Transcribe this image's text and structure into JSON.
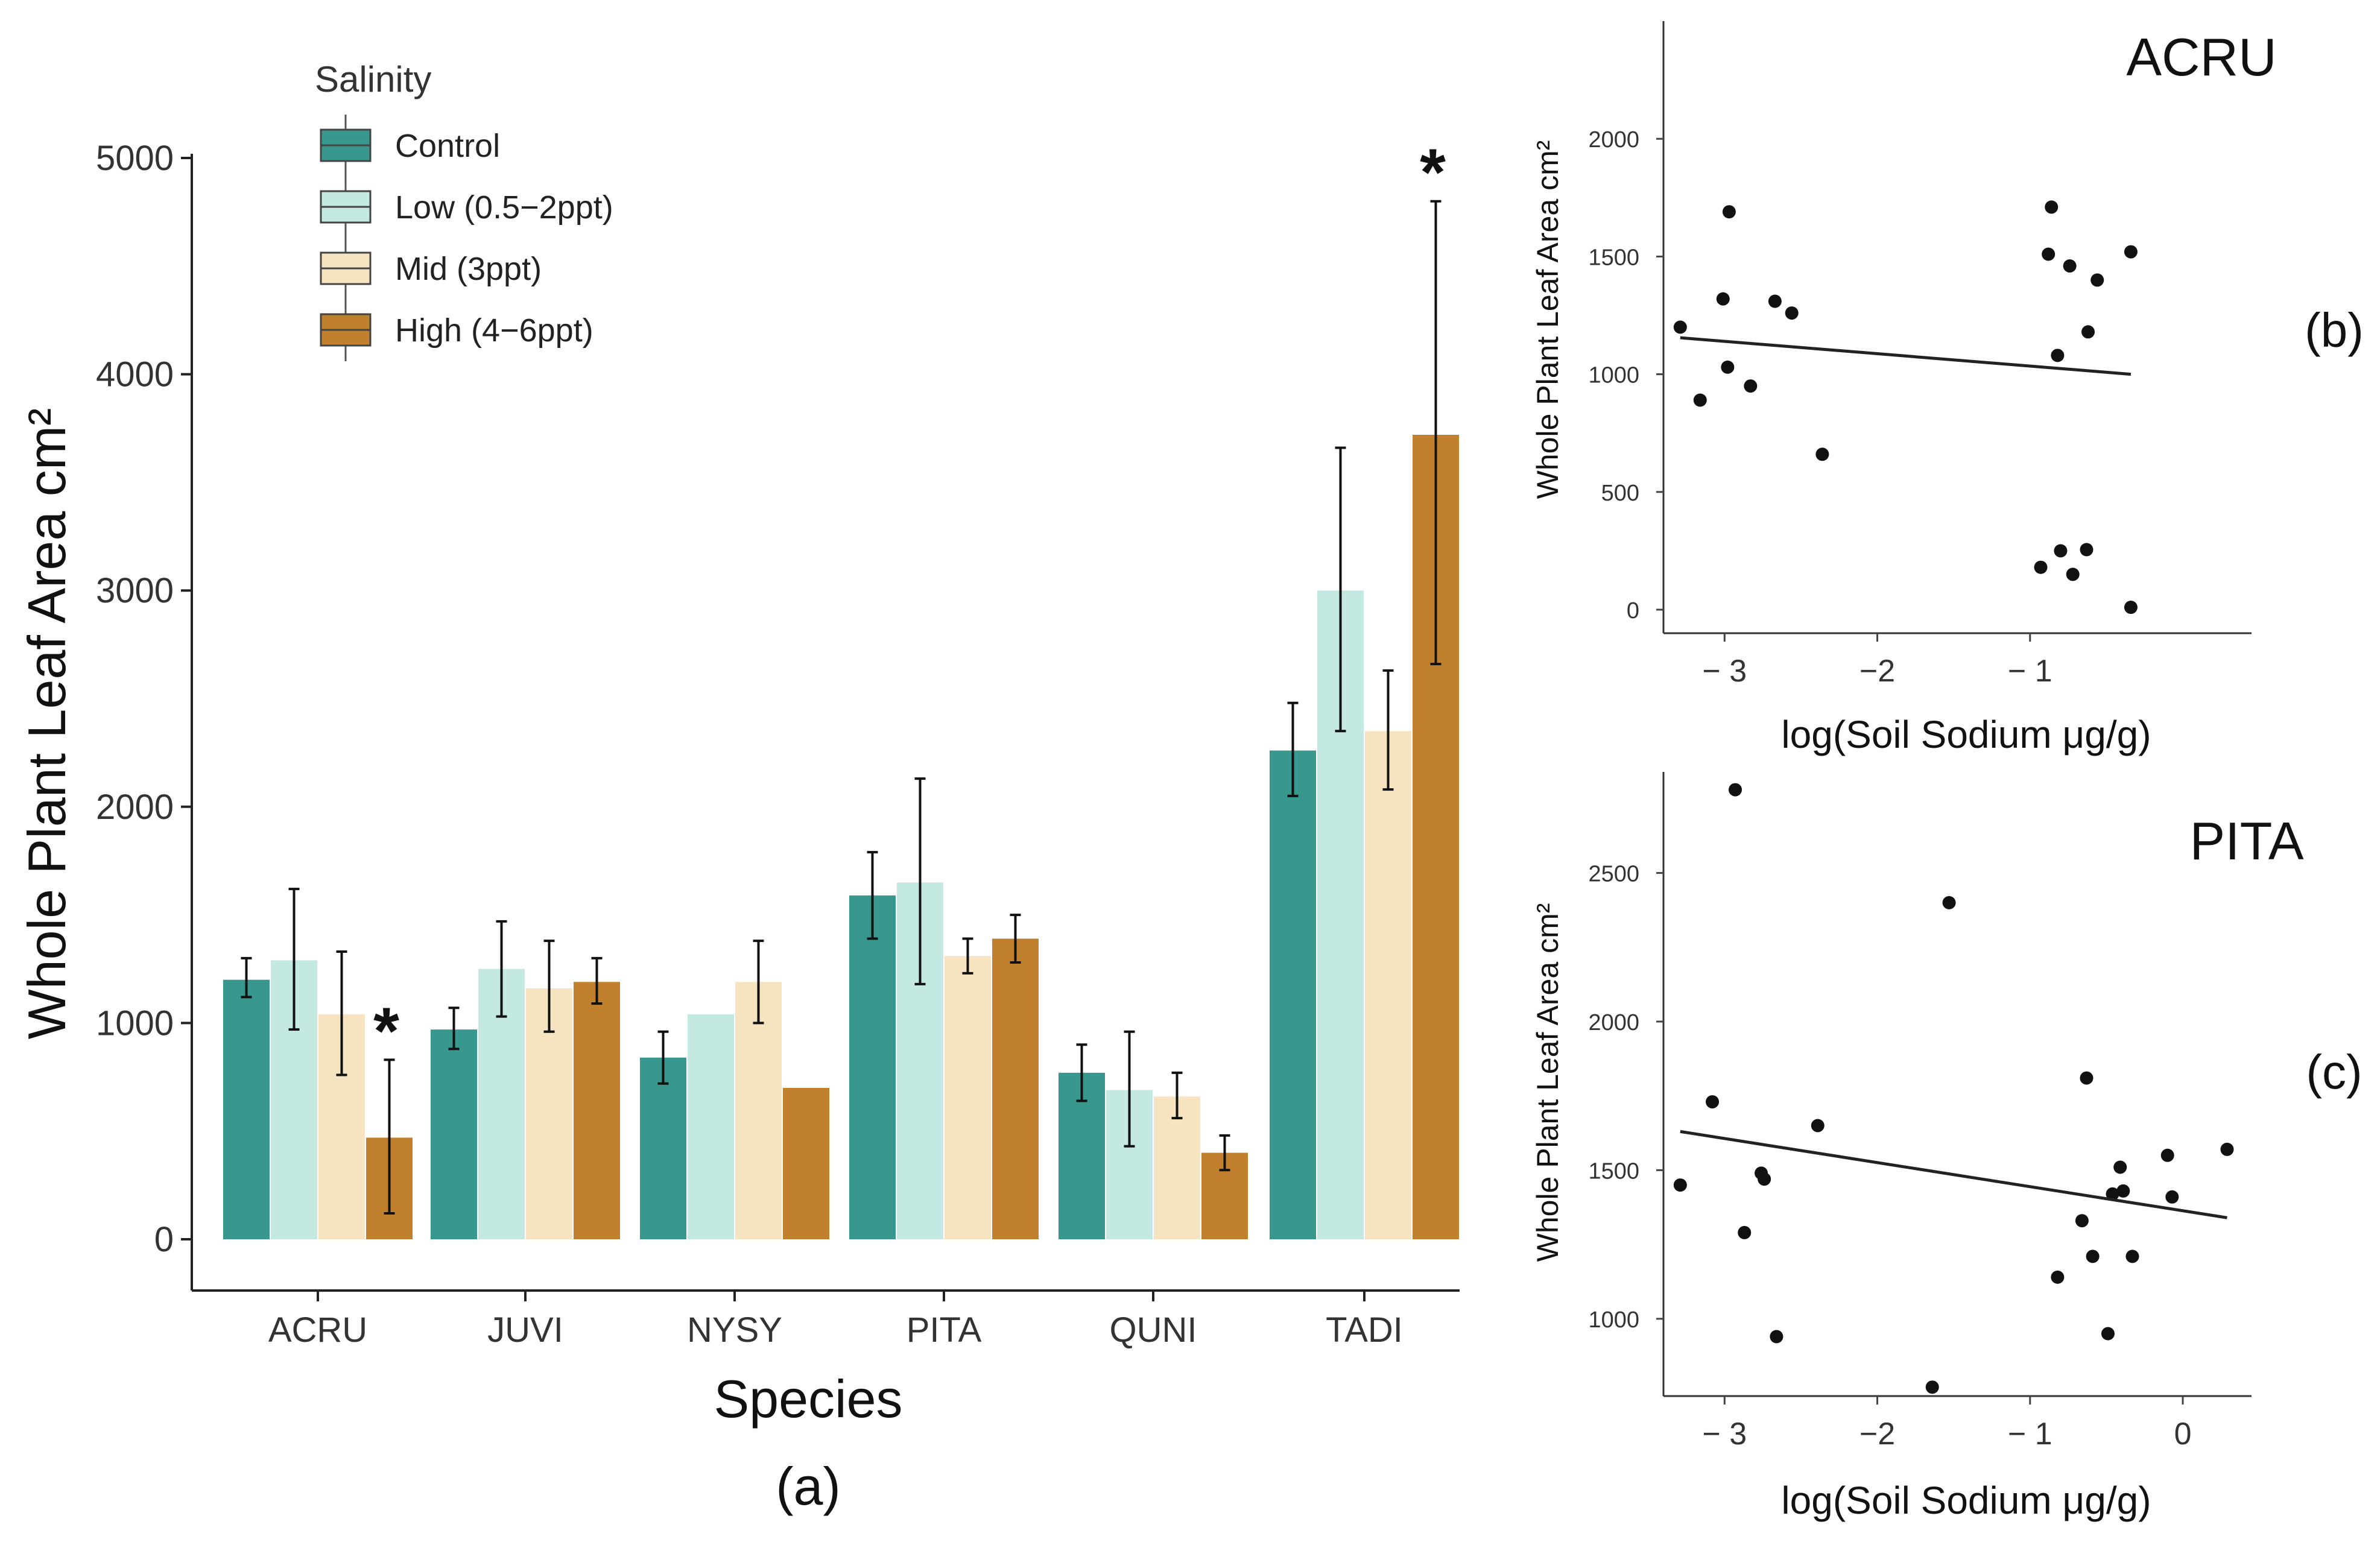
{
  "chart_data": [
    {
      "panel": "a",
      "type": "bar",
      "title": "",
      "panel_label": "(a)",
      "xlabel": "Species",
      "ylabel": "Whole Plant Leaf Area cm²",
      "ylim": [
        0,
        5200
      ],
      "yticks": [
        0,
        1000,
        2000,
        3000,
        4000,
        5000
      ],
      "categories": [
        "ACRU",
        "JUVI",
        "NYSY",
        "PITA",
        "QUNI",
        "TADI"
      ],
      "legend": {
        "title": "Salinity",
        "position": "top-left"
      },
      "series": [
        {
          "name": "Control",
          "color": "#38988e",
          "values": [
            1200,
            970,
            840,
            1590,
            770,
            2260
          ],
          "error_low": [
            1120,
            880,
            720,
            1390,
            640,
            2050
          ],
          "error_high": [
            1300,
            1070,
            960,
            1790,
            900,
            2480
          ]
        },
        {
          "name": "Low (0.5−2ppt)",
          "color": "#c3e9e2",
          "values": [
            1290,
            1250,
            1040,
            1650,
            690,
            3000
          ],
          "error_low": [
            970,
            1030,
            null,
            1180,
            430,
            2350
          ],
          "error_high": [
            1620,
            1470,
            null,
            2130,
            960,
            3660
          ]
        },
        {
          "name": "Mid (3ppt)",
          "color": "#f5e4bf",
          "values": [
            1040,
            1160,
            1190,
            1310,
            660,
            2350
          ],
          "error_low": [
            760,
            960,
            1000,
            1230,
            560,
            2080
          ],
          "error_high": [
            1330,
            1380,
            1380,
            1390,
            770,
            2630
          ]
        },
        {
          "name": "High (4−6ppt)",
          "color": "#c1802e",
          "values": [
            470,
            1190,
            700,
            1390,
            400,
            3720
          ],
          "error_low": [
            120,
            1090,
            null,
            1280,
            320,
            2660
          ],
          "error_high": [
            830,
            1300,
            null,
            1500,
            480,
            4800
          ]
        }
      ],
      "annotations": [
        {
          "text": "*",
          "category": "ACRU",
          "series": "High (4−6ppt)"
        },
        {
          "text": "*",
          "category": "TADI",
          "series": "High (4−6ppt)"
        }
      ]
    },
    {
      "panel": "b",
      "type": "scatter",
      "title": "ACRU",
      "panel_label": "(b)",
      "xlabel": "log(Soil Sodium μg/g)",
      "ylabel": "Whole Plant Leaf Area cm²",
      "xlim": [
        -3.4,
        0.45
      ],
      "ylim": [
        -100,
        2500
      ],
      "xticks": [
        -3,
        -2,
        -1
      ],
      "xtick_labels": [
        "− 3",
        "−2",
        "− 1"
      ],
      "yticks": [
        0,
        500,
        1000,
        1500,
        2000
      ],
      "points": [
        [
          -3.29,
          1200
        ],
        [
          -3.16,
          890
        ],
        [
          -3.01,
          1320
        ],
        [
          -2.98,
          1030
        ],
        [
          -2.97,
          1690
        ],
        [
          -2.83,
          950
        ],
        [
          -2.67,
          1310
        ],
        [
          -2.56,
          1260
        ],
        [
          -2.36,
          660
        ],
        [
          -0.88,
          1510
        ],
        [
          -0.86,
          1710
        ],
        [
          -0.82,
          1080
        ],
        [
          -0.74,
          1460
        ],
        [
          -0.62,
          1180
        ],
        [
          -0.56,
          1400
        ],
        [
          -0.34,
          1520
        ],
        [
          -0.93,
          180
        ],
        [
          -0.8,
          250
        ],
        [
          -0.72,
          150
        ],
        [
          -0.63,
          255
        ],
        [
          -0.34,
          10
        ]
      ],
      "fit_line": {
        "x": [
          -3.29,
          -0.34
        ],
        "y": [
          1155,
          1000
        ]
      }
    },
    {
      "panel": "c",
      "type": "scatter",
      "title": "PITA",
      "panel_label": "(c)",
      "xlabel": "log(Soil Sodium μg/g)",
      "ylabel": "Whole Plant Leaf Area cm²",
      "xlim": [
        -3.4,
        0.45
      ],
      "ylim": [
        740,
        2840
      ],
      "xticks": [
        -3,
        -2,
        -1,
        0
      ],
      "xtick_labels": [
        "− 3",
        "−2",
        "− 1",
        "0"
      ],
      "yticks": [
        1000,
        1500,
        2000,
        2500
      ],
      "points": [
        [
          -3.29,
          1450
        ],
        [
          -3.08,
          1730
        ],
        [
          -2.93,
          2780
        ],
        [
          -2.87,
          1290
        ],
        [
          -2.76,
          1490
        ],
        [
          -2.74,
          1470
        ],
        [
          -2.66,
          940
        ],
        [
          -2.39,
          1650
        ],
        [
          -1.64,
          770
        ],
        [
          -1.53,
          2400
        ],
        [
          -0.82,
          1140
        ],
        [
          -0.66,
          1330
        ],
        [
          -0.63,
          1810
        ],
        [
          -0.59,
          1210
        ],
        [
          -0.49,
          950
        ],
        [
          -0.46,
          1420
        ],
        [
          -0.41,
          1510
        ],
        [
          -0.39,
          1430
        ],
        [
          -0.33,
          1210
        ],
        [
          -0.1,
          1550
        ],
        [
          -0.07,
          1410
        ],
        [
          0.29,
          1570
        ]
      ],
      "fit_line": {
        "x": [
          -3.29,
          0.29
        ],
        "y": [
          1630,
          1340
        ]
      }
    }
  ]
}
